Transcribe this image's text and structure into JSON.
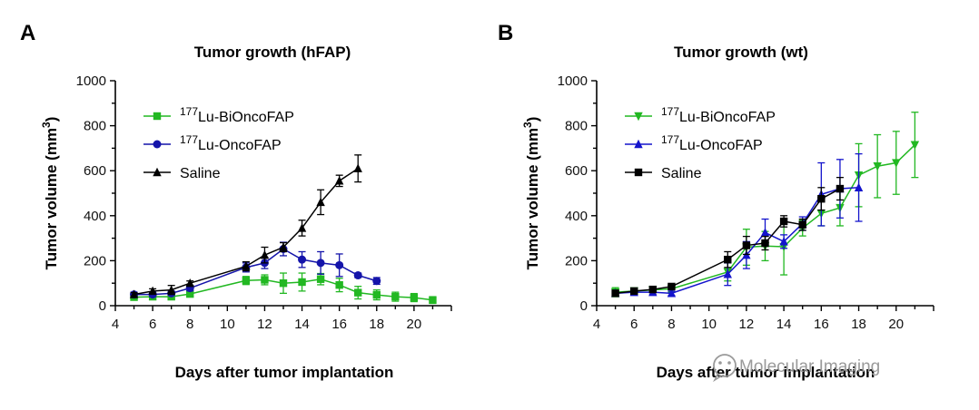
{
  "watermark": {
    "text": "Molecular Imaging",
    "icon": "wechat-icon"
  },
  "chart_data": [
    {
      "panel": "A",
      "type": "line",
      "title": "Tumor growth (hFAP)",
      "xlabel": "Days after tumor implantation",
      "ylabel": "Tumor volume (mm3)",
      "xlim": [
        4,
        22
      ],
      "ylim": [
        0,
        1000
      ],
      "xticks": [
        4,
        6,
        8,
        10,
        12,
        14,
        16,
        18,
        20
      ],
      "yticks": [
        0,
        200,
        400,
        600,
        800,
        1000
      ],
      "legend_position": "top-left",
      "series": [
        {
          "name_sup": "177",
          "name": "Lu-BiOncoFAP",
          "color": "#22b822",
          "marker": "square",
          "x": [
            5,
            6,
            7,
            8,
            11,
            12,
            13,
            14,
            15,
            16,
            17,
            18,
            19,
            20,
            21
          ],
          "y": [
            38,
            40,
            40,
            52,
            112,
            115,
            100,
            105,
            118,
            92,
            58,
            48,
            40,
            36,
            25
          ],
          "err": [
            12,
            10,
            12,
            12,
            18,
            22,
            45,
            40,
            25,
            30,
            28,
            22,
            20,
            18,
            15
          ]
        },
        {
          "name_sup": "177",
          "name": "Lu-OncoFAP",
          "color": "#1414aa",
          "marker": "circle",
          "x": [
            5,
            6,
            7,
            8,
            11,
            12,
            13,
            14,
            15,
            16,
            17,
            18
          ],
          "y": [
            50,
            50,
            55,
            78,
            170,
            190,
            252,
            205,
            190,
            180,
            135,
            110
          ],
          "err": [
            10,
            10,
            10,
            12,
            20,
            25,
            30,
            35,
            50,
            50,
            10,
            15
          ]
        },
        {
          "name": "Saline",
          "color": "#000000",
          "marker": "triangle",
          "x": [
            5,
            6,
            7,
            8,
            11,
            12,
            13,
            14,
            15,
            16,
            17
          ],
          "y": [
            50,
            65,
            70,
            100,
            175,
            225,
            260,
            345,
            460,
            555,
            610
          ],
          "err": [
            8,
            10,
            20,
            10,
            20,
            35,
            20,
            35,
            55,
            25,
            60
          ]
        }
      ]
    },
    {
      "panel": "B",
      "type": "line",
      "title": "Tumor growth (wt)",
      "xlabel": "Days after tumor implantation",
      "ylabel": "Tumor volume (mm3)",
      "xlim": [
        4,
        22
      ],
      "ylim": [
        0,
        1000
      ],
      "xticks": [
        4,
        6,
        8,
        10,
        12,
        14,
        16,
        18,
        20
      ],
      "yticks": [
        0,
        200,
        400,
        600,
        800,
        1000
      ],
      "legend_position": "top-left",
      "series": [
        {
          "name_sup": "177",
          "name": "Lu-BiOncoFAP",
          "color": "#22b822",
          "marker": "triangle-down",
          "x": [
            5,
            6,
            7,
            8,
            11,
            12,
            13,
            14,
            15,
            16,
            17,
            18,
            19,
            20,
            21
          ],
          "y": [
            60,
            65,
            70,
            75,
            150,
            260,
            265,
            262,
            345,
            410,
            435,
            580,
            620,
            635,
            715
          ],
          "err": [
            20,
            10,
            10,
            15,
            40,
            80,
            65,
            125,
            35,
            55,
            80,
            140,
            140,
            140,
            145
          ]
        },
        {
          "name_sup": "177",
          "name": "Lu-OncoFAP",
          "color": "#1414cc",
          "marker": "triangle",
          "x": [
            5,
            6,
            7,
            8,
            11,
            12,
            13,
            14,
            15,
            16,
            17,
            18
          ],
          "y": [
            55,
            60,
            60,
            55,
            140,
            225,
            325,
            285,
            365,
            495,
            520,
            525
          ],
          "err": [
            10,
            10,
            10,
            10,
            50,
            60,
            60,
            30,
            30,
            140,
            130,
            150
          ]
        },
        {
          "name": "Saline",
          "color": "#000000",
          "marker": "square",
          "x": [
            5,
            6,
            7,
            8,
            11,
            12,
            13,
            14,
            15,
            16,
            17
          ],
          "y": [
            55,
            65,
            72,
            85,
            205,
            268,
            278,
            375,
            360,
            475,
            520
          ],
          "err": [
            10,
            10,
            10,
            10,
            35,
            40,
            30,
            25,
            25,
            50,
            50
          ]
        }
      ]
    }
  ]
}
